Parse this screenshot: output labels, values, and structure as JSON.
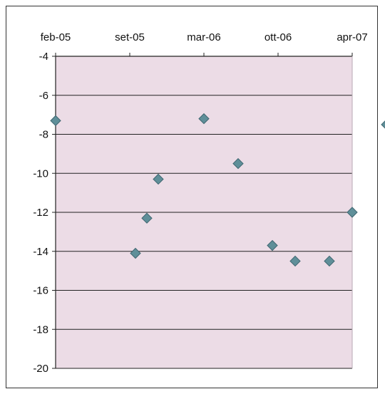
{
  "chart_data": {
    "type": "scatter",
    "title": "",
    "xlabel": "",
    "ylabel": "",
    "x_axis_position": "top",
    "x_ticks": [
      "feb-05",
      "set-05",
      "mar-06",
      "ott-06",
      "apr-07"
    ],
    "y_ticks": [
      "-4",
      "-6",
      "-8",
      "-10",
      "-12",
      "-14",
      "-16",
      "-18",
      "-20"
    ],
    "ylim": [
      -20,
      -4
    ],
    "xlim_months": [
      "2005-02",
      "2007-04"
    ],
    "grid": true,
    "plot_background": "#ecdce6",
    "marker_color": "#5f8f99",
    "points": [
      {
        "x": "2005-02",
        "y": -7.3
      },
      {
        "x": "2005-09",
        "y": -14.1
      },
      {
        "x": "2005-10",
        "y": -12.3
      },
      {
        "x": "2005-11",
        "y": -10.3
      },
      {
        "x": "2006-03",
        "y": -7.2
      },
      {
        "x": "2006-06",
        "y": -9.5
      },
      {
        "x": "2006-09",
        "y": -13.7
      },
      {
        "x": "2006-11",
        "y": -14.5
      },
      {
        "x": "2007-02",
        "y": -14.5
      },
      {
        "x": "2007-04",
        "y": -12.0
      },
      {
        "x": "2007-07",
        "y": -7.5
      }
    ]
  }
}
